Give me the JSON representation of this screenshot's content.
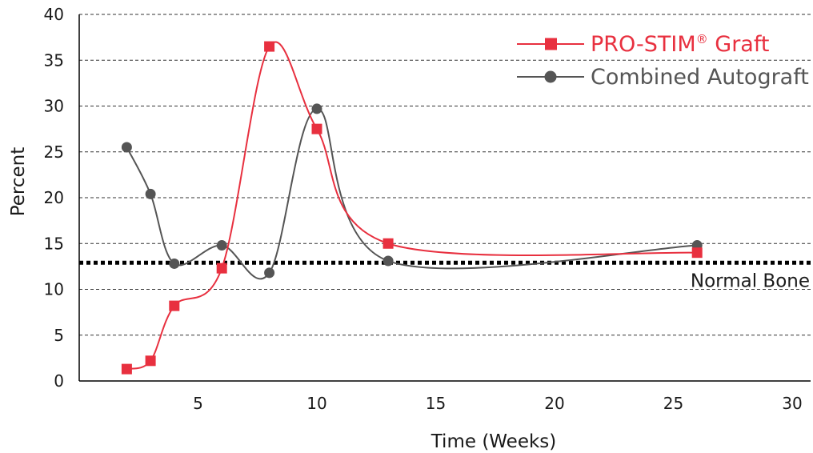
{
  "chart_data": {
    "type": "line",
    "xlabel": "Time (Weeks)",
    "ylabel": "Percent",
    "xlim": [
      0,
      30
    ],
    "ylim": [
      0,
      40
    ],
    "x_ticks": [
      5,
      10,
      15,
      20,
      25,
      30
    ],
    "y_ticks": [
      0,
      5,
      10,
      15,
      20,
      25,
      30,
      35,
      40
    ],
    "grid": "horizontal dashed",
    "legend_position": "top-right",
    "series": [
      {
        "name": "PRO-STIM® Graft",
        "legend_main": "PRO-STIM",
        "legend_mark": "®",
        "legend_tail": " Graft",
        "color": "#e8303f",
        "marker": "square",
        "x": [
          2,
          3,
          4,
          6,
          8,
          10,
          13,
          26
        ],
        "y": [
          1.3,
          2.2,
          8.2,
          12.3,
          36.5,
          27.5,
          15.0,
          14.0
        ]
      },
      {
        "name": "Combined Autograft",
        "color": "#555555",
        "marker": "circle",
        "x": [
          2,
          3,
          4,
          6,
          8,
          10,
          13,
          26
        ],
        "y": [
          25.5,
          20.4,
          12.8,
          14.8,
          11.8,
          29.7,
          13.1,
          14.8
        ]
      }
    ],
    "reference_line": {
      "label": "Normal Bone",
      "y": 12.9,
      "color": "#000000"
    }
  }
}
